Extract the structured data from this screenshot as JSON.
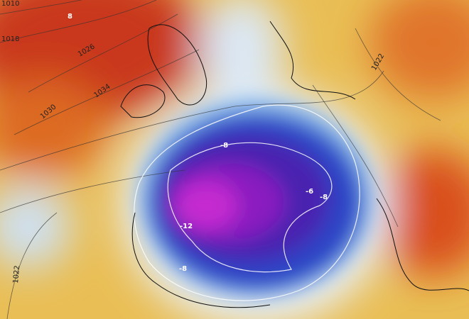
{
  "isobar_labels": [
    "1010",
    "1018",
    "1026",
    "1034",
    "1030",
    "1022",
    "1022"
  ],
  "temperature_labels": [
    8,
    -8,
    -12,
    -8,
    -6,
    -8
  ]
}
